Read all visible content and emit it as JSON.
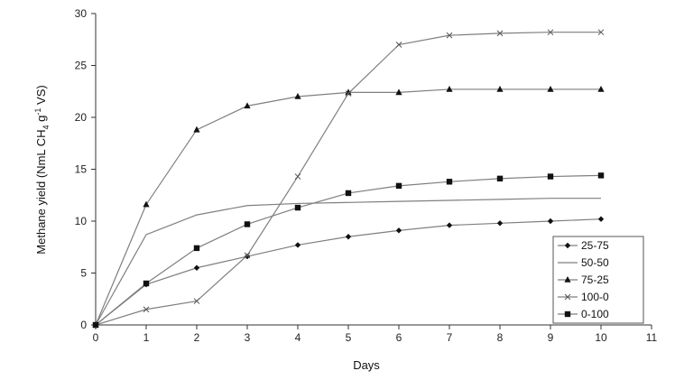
{
  "chart_data": {
    "type": "line",
    "xlabel": "Days",
    "ylabel_main": "Methane yield (NmL CH",
    "ylabel_sub": "4",
    "ylabel_mid": " g",
    "ylabel_sup": "-1",
    "ylabel_end": " VS)",
    "xlim": [
      0,
      11
    ],
    "ylim": [
      0,
      30
    ],
    "x_ticks": [
      0,
      1,
      2,
      3,
      4,
      5,
      6,
      7,
      8,
      9,
      10,
      11
    ],
    "y_ticks": [
      0,
      5,
      10,
      15,
      20,
      25,
      30
    ],
    "grid": false,
    "legend_position": "bottom-right",
    "series": [
      {
        "name": "25-75",
        "marker": "diamond",
        "x": [
          0,
          1,
          2,
          3,
          4,
          5,
          6,
          7,
          8,
          9,
          10
        ],
        "y": [
          0,
          3.9,
          5.5,
          6.6,
          7.7,
          8.5,
          9.1,
          9.6,
          9.8,
          10.0,
          10.2
        ]
      },
      {
        "name": "50-50",
        "marker": "none",
        "x": [
          0,
          1,
          2,
          3,
          4,
          5,
          6,
          7,
          8,
          9,
          10
        ],
        "y": [
          0,
          8.7,
          10.6,
          11.5,
          11.7,
          11.8,
          11.9,
          12.0,
          12.1,
          12.2,
          12.2
        ]
      },
      {
        "name": "75-25",
        "marker": "triangle",
        "x": [
          0,
          1,
          2,
          3,
          4,
          5,
          6,
          7,
          8,
          9,
          10
        ],
        "y": [
          0,
          11.6,
          18.8,
          21.1,
          22.0,
          22.4,
          22.4,
          22.7,
          22.7,
          22.7,
          22.7
        ]
      },
      {
        "name": "100-0",
        "marker": "x",
        "x": [
          0,
          1,
          2,
          3,
          4,
          5,
          6,
          7,
          8,
          9,
          10
        ],
        "y": [
          0,
          1.5,
          2.3,
          6.7,
          14.3,
          22.3,
          27.0,
          27.9,
          28.1,
          28.2,
          28.2
        ]
      },
      {
        "name": "0-100",
        "marker": "square",
        "x": [
          0,
          1,
          2,
          3,
          4,
          5,
          6,
          7,
          8,
          9,
          10
        ],
        "y": [
          0,
          4.0,
          7.4,
          9.7,
          11.3,
          12.7,
          13.4,
          13.8,
          14.1,
          14.3,
          14.4
        ]
      }
    ]
  }
}
